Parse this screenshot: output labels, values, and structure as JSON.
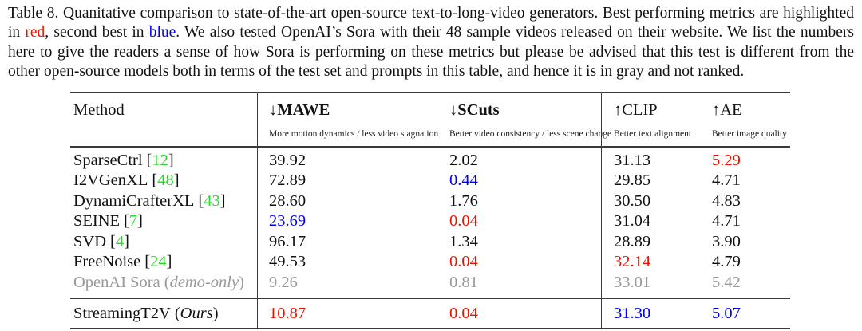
{
  "caption": {
    "part1": "Table 8.  Quanitative comparison to state-of-the-art open-source text-to-long-video generators.  Best performing metrics are highlighted in ",
    "red_word": "red",
    "part2": ", second best in ",
    "blue_word": "blue",
    "part3": ".  We also tested OpenAI’s Sora with their 48 sample videos released on their website.  We list the numbers here to give the readers a sense of how Sora is performing on these metrics but please be advised that this test is different from the other open-source models both in terms of the test set and prompts in this table, and hence it is in gray and not ranked."
  },
  "colors": {
    "best": "#ee1100",
    "second": "#0000ee",
    "citation": "#2bd52b",
    "muted": "#9a9a9a"
  },
  "table": {
    "columns": [
      {
        "label": "Method",
        "arrow": "",
        "sub": ""
      },
      {
        "label": "MAWE",
        "arrow": "↓",
        "sub": "More motion dynamics / less video stagnation"
      },
      {
        "label": "SCuts",
        "arrow": "↓",
        "sub": "Better video consistency / less scene change"
      },
      {
        "label": "CLIP",
        "arrow": "↑",
        "sub": "Better text alignment"
      },
      {
        "label": "AE",
        "arrow": "↑",
        "sub": "Better image quality"
      }
    ],
    "rows": [
      {
        "name": "SparseCtrl",
        "cite": "12",
        "suffix": "",
        "muted": false,
        "mawe": "39.92",
        "scuts": "2.02",
        "clip": "31.13",
        "ae": "5.29",
        "mawe_c": "",
        "scuts_c": "",
        "clip_c": "",
        "ae_c": "best"
      },
      {
        "name": "I2VGenXL",
        "cite": "48",
        "suffix": "",
        "muted": false,
        "mawe": "72.89",
        "scuts": "0.44",
        "clip": "29.85",
        "ae": "4.71",
        "mawe_c": "",
        "scuts_c": "second",
        "clip_c": "",
        "ae_c": ""
      },
      {
        "name": "DynamiCrafterXL",
        "cite": "43",
        "suffix": "",
        "muted": false,
        "mawe": "28.60",
        "scuts": "1.76",
        "clip": "30.50",
        "ae": "4.83",
        "mawe_c": "",
        "scuts_c": "",
        "clip_c": "",
        "ae_c": ""
      },
      {
        "name": "SEINE",
        "cite": "7",
        "suffix": "",
        "muted": false,
        "mawe": "23.69",
        "scuts": "0.04",
        "clip": "31.04",
        "ae": "4.71",
        "mawe_c": "second",
        "scuts_c": "best",
        "clip_c": "",
        "ae_c": ""
      },
      {
        "name": "SVD",
        "cite": "4",
        "suffix": "",
        "muted": false,
        "mawe": "96.17",
        "scuts": "1.34",
        "clip": "28.89",
        "ae": "3.90",
        "mawe_c": "",
        "scuts_c": "",
        "clip_c": "",
        "ae_c": ""
      },
      {
        "name": "FreeNoise",
        "cite": "24",
        "suffix": "",
        "muted": false,
        "mawe": "49.53",
        "scuts": "0.04",
        "clip": "32.14",
        "ae": "4.79",
        "mawe_c": "",
        "scuts_c": "best",
        "clip_c": "best",
        "ae_c": ""
      },
      {
        "name": "OpenAI Sora",
        "cite": "",
        "suffix": "demo-only",
        "muted": true,
        "mawe": "9.26",
        "scuts": "0.81",
        "clip": "33.01",
        "ae": "5.42",
        "mawe_c": "",
        "scuts_c": "",
        "clip_c": "",
        "ae_c": ""
      }
    ],
    "final_row": {
      "name": "StreamingT2V",
      "cite": "",
      "suffix": "Ours",
      "muted": false,
      "mawe": "10.87",
      "scuts": "0.04",
      "clip": "31.30",
      "ae": "5.07",
      "mawe_c": "best",
      "scuts_c": "best",
      "clip_c": "second",
      "ae_c": "second"
    }
  }
}
